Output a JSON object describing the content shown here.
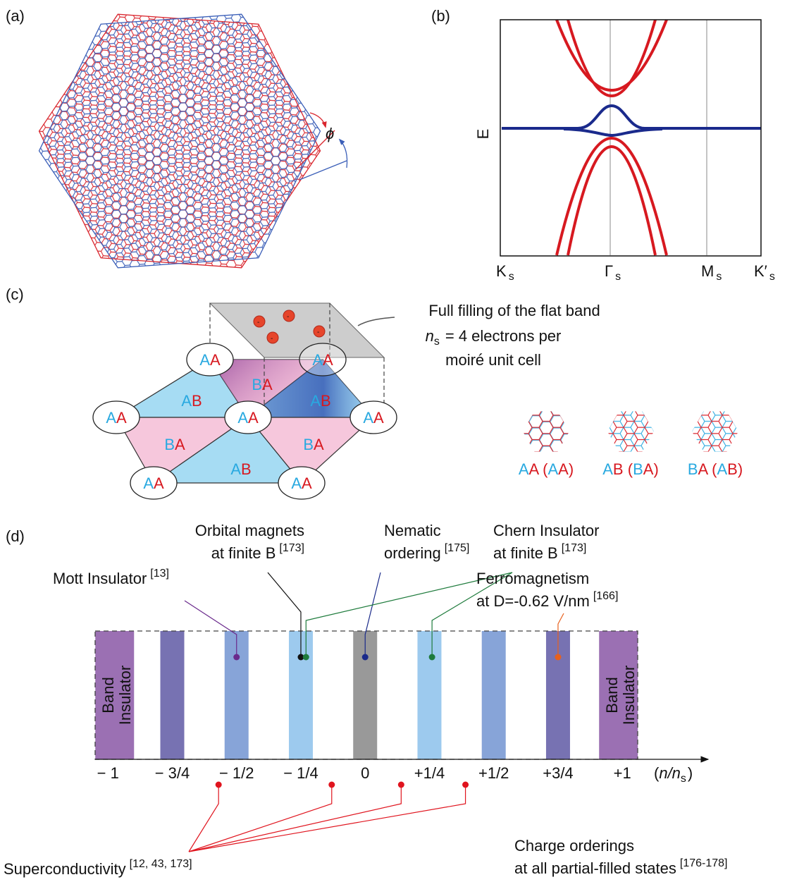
{
  "panel_labels": [
    "(a)",
    "(b)",
    "(c)",
    "(d)"
  ],
  "band_structure": {
    "y_label": "E",
    "kpoints": [
      "K",
      "Γ",
      "M",
      "K′"
    ],
    "kpoint_subscript": "s"
  },
  "moire_cell": {
    "callout": {
      "line1": "Full filling of the flat band",
      "var": "n",
      "sub": "s",
      "rest": "= 4 electrons per",
      "line3": "moiré unit cell"
    },
    "sites": [
      "AA",
      "AA",
      "AA",
      "AA",
      "AA",
      "AA",
      "AA"
    ],
    "domains": [
      "AB",
      "BA",
      "AB",
      "BA",
      "AB",
      "BA"
    ],
    "legend": [
      "AA (AA)",
      "AB (BA)",
      "BA (AB)"
    ]
  },
  "phase_diagram": {
    "xlim": [
      -1.05,
      1.32
    ],
    "xticks": [
      {
        "value": -1,
        "label": "− 1"
      },
      {
        "value": -0.75,
        "label": "− 3/4"
      },
      {
        "value": -0.5,
        "label": "− 1/2"
      },
      {
        "value": -0.25,
        "label": "− 1/4"
      },
      0,
      {
        "value": 0.25,
        "label": "+1/4"
      },
      {
        "value": 0.5,
        "label": "+1/2"
      },
      {
        "value": 0.75,
        "label": "+3/4"
      },
      {
        "value": 1,
        "label": "+1"
      }
    ],
    "axis_label": [
      "(",
      "n/n",
      "s",
      ")"
    ],
    "band_insulator": [
      "Band",
      "Insulator"
    ],
    "bar_colors": [
      "#9b70b3",
      "#7772b2",
      "#87a4d8",
      "#9dcaee",
      "#999999",
      "#9dcaee",
      "#87a4d8",
      "#7772b2",
      "#9b70b3"
    ],
    "phases": [
      {
        "lines": [
          "Mott Insulator"
        ],
        "ref": "[13]",
        "color": "#6a2a8c",
        "fillings": [
          -0.5
        ]
      },
      {
        "lines": [
          "Orbital magnets",
          "at finite B"
        ],
        "ref": "[173]",
        "color": "#111111",
        "fillings": [
          -0.25
        ]
      },
      {
        "lines": [
          "Nematic",
          "ordering"
        ],
        "ref": "[175]",
        "color": "#1a2a8a",
        "fillings": [
          0
        ]
      },
      {
        "lines": [
          "Chern Insulator",
          "at finite B"
        ],
        "ref": "[173]",
        "color": "#1e7b3c",
        "fillings": [
          -0.23,
          0.26
        ]
      },
      {
        "lines": [
          "Ferromagnetism",
          "at D=-0.62 V/nm"
        ],
        "ref": "[166]",
        "color": "#e8601c",
        "fillings": [
          0.75
        ]
      },
      {
        "lines": [
          "Superconductivity"
        ],
        "ref": "[12, 43, 173]",
        "color": "#e0141e",
        "fillings": [
          -0.57,
          -0.13,
          0.14,
          0.39
        ]
      },
      {
        "lines": [
          "Charge orderings",
          "at all partial-filled states"
        ],
        "ref": "[176-178]",
        "color": "#111111",
        "fillings": []
      }
    ]
  }
}
